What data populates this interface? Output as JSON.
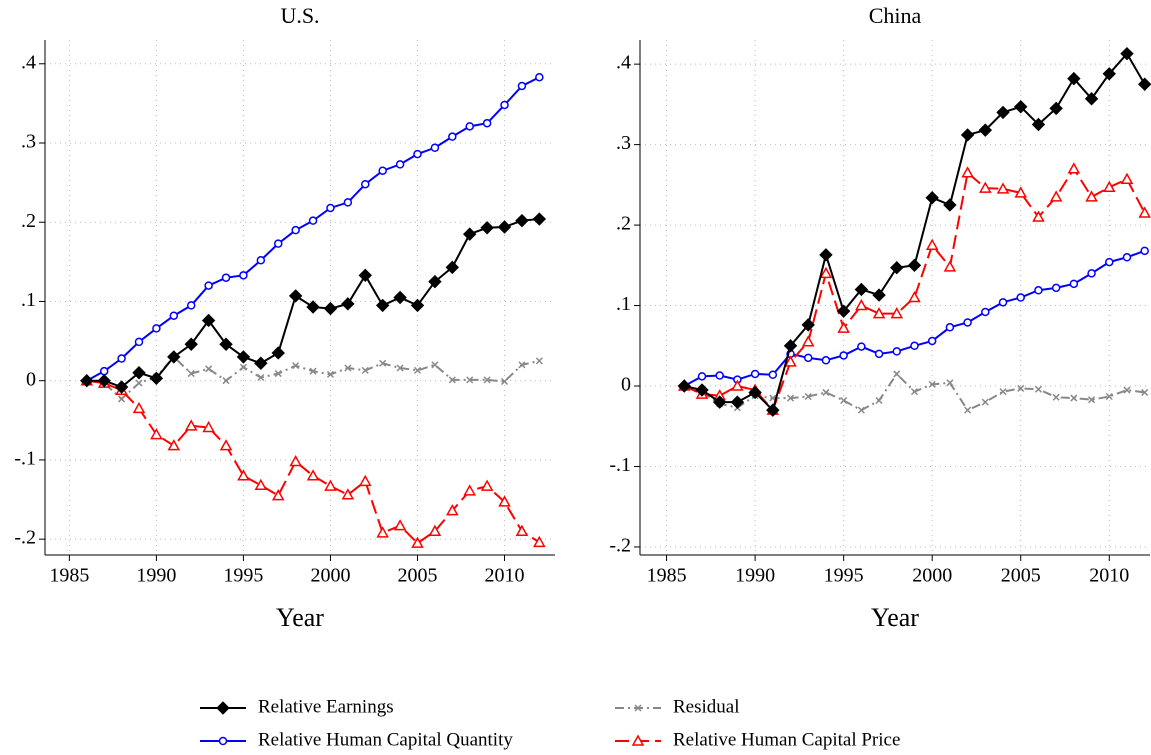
{
  "chart_data": [
    {
      "type": "line",
      "title": "U.S.",
      "x_label": "Year",
      "x": [
        1986,
        1987,
        1988,
        1989,
        1990,
        1991,
        1992,
        1993,
        1994,
        1995,
        1996,
        1997,
        1998,
        1999,
        2000,
        2001,
        2002,
        2003,
        2004,
        2005,
        2006,
        2007,
        2008,
        2009,
        2010,
        2011,
        2012
      ],
      "xlim": [
        1983.6,
        2012.9
      ],
      "xticks": [
        1985,
        1990,
        1995,
        2000,
        2005,
        2010
      ],
      "ylim": [
        -0.22,
        0.43
      ],
      "yticks": [
        {
          "value": -0.2,
          "label": "-.2"
        },
        {
          "value": -0.1,
          "label": "-.1"
        },
        0,
        {
          "value": 0.1,
          "label": ".1"
        },
        {
          "value": 0.2,
          "label": ".2"
        },
        {
          "value": 0.3,
          "label": ".3"
        },
        {
          "value": 0.4,
          "label": ".4"
        }
      ],
      "grid": true,
      "series": [
        {
          "name": "Relative Earnings",
          "color": "#000000",
          "marker": "diamond",
          "dash": "solid",
          "values": [
            0,
            0,
            -0.008,
            0.01,
            0.003,
            0.03,
            0.046,
            0.076,
            0.046,
            0.03,
            0.022,
            0.035,
            0.107,
            0.093,
            0.091,
            0.097,
            0.133,
            0.095,
            0.105,
            0.095,
            0.125,
            0.143,
            0.185,
            0.193,
            0.194,
            0.202,
            0.204
          ]
        },
        {
          "name": "Residual",
          "color": "#888888",
          "marker": "x",
          "dash": "dashdot",
          "values": [
            0,
            -0.003,
            -0.023,
            -0.003,
            0.005,
            0.03,
            0.009,
            0.015,
            0,
            0.017,
            0.004,
            0.009,
            0.019,
            0.012,
            0.008,
            0.016,
            0.013,
            0.022,
            0.016,
            0.013,
            0.02,
            0.001,
            0.001,
            0.001,
            -0.001,
            0.02,
            0.025
          ]
        },
        {
          "name": "Relative Human Capital Quantity",
          "color": "#0000ff",
          "marker": "circle",
          "dash": "solid",
          "values": [
            0,
            0.012,
            0.028,
            0.049,
            0.066,
            0.082,
            0.095,
            0.12,
            0.13,
            0.133,
            0.152,
            0.173,
            0.19,
            0.202,
            0.218,
            0.225,
            0.248,
            0.265,
            0.273,
            0.286,
            0.294,
            0.308,
            0.321,
            0.325,
            0.348,
            0.372,
            0.383
          ]
        },
        {
          "name": "Relative Human Capital Price",
          "color": "#ff0000",
          "marker": "triangle",
          "dash": "dash",
          "values": [
            0,
            -0.003,
            -0.012,
            -0.035,
            -0.068,
            -0.082,
            -0.057,
            -0.059,
            -0.082,
            -0.12,
            -0.132,
            -0.145,
            -0.102,
            -0.12,
            -0.133,
            -0.144,
            -0.127,
            -0.192,
            -0.183,
            -0.205,
            -0.19,
            -0.164,
            -0.139,
            -0.133,
            -0.153,
            -0.19,
            -0.204
          ]
        }
      ]
    },
    {
      "type": "line",
      "title": "China",
      "x_label": "Year",
      "x": [
        1986,
        1987,
        1988,
        1989,
        1990,
        1991,
        1992,
        1993,
        1994,
        1995,
        1996,
        1997,
        1998,
        1999,
        2000,
        2001,
        2002,
        2003,
        2004,
        2005,
        2006,
        2007,
        2008,
        2009,
        2010,
        2011,
        2012
      ],
      "xlim": [
        1983.5,
        2012.3
      ],
      "xticks": [
        1985,
        1990,
        1995,
        2000,
        2005,
        2010
      ],
      "ylim": [
        -0.21,
        0.43
      ],
      "yticks": [
        {
          "value": -0.2,
          "label": "-.2"
        },
        {
          "value": -0.1,
          "label": "-.1"
        },
        0,
        {
          "value": 0.1,
          "label": ".1"
        },
        {
          "value": 0.2,
          "label": ".2"
        },
        {
          "value": 0.3,
          "label": ".3"
        },
        {
          "value": 0.4,
          "label": ".4"
        }
      ],
      "grid": true,
      "series": [
        {
          "color": "#000000",
          "marker": "diamond",
          "dash": "solid",
          "values": [
            0,
            -0.005,
            -0.02,
            -0.02,
            -0.008,
            -0.03,
            0.05,
            0.076,
            0.163,
            0.093,
            0.12,
            0.113,
            0.147,
            0.15,
            0.234,
            0.225,
            0.312,
            0.318,
            0.34,
            0.347,
            0.325,
            0.345,
            0.382,
            0.357,
            0.388,
            0.413,
            0.375
          ]
        },
        {
          "color": "#888888",
          "marker": "x",
          "dash": "dashdot",
          "values": [
            0,
            -0.008,
            -0.022,
            -0.027,
            -0.012,
            -0.015,
            -0.015,
            -0.013,
            -0.008,
            -0.018,
            -0.03,
            -0.018,
            0.015,
            -0.007,
            0.002,
            0.004,
            -0.03,
            -0.02,
            -0.007,
            -0.003,
            -0.004,
            -0.014,
            -0.015,
            -0.017,
            -0.013,
            -0.005,
            -0.008
          ]
        },
        {
          "color": "#0000ff",
          "marker": "circle",
          "dash": "solid",
          "values": [
            0,
            0.012,
            0.013,
            0.008,
            0.015,
            0.014,
            0.04,
            0.035,
            0.032,
            0.038,
            0.049,
            0.04,
            0.043,
            0.05,
            0.056,
            0.073,
            0.079,
            0.092,
            0.104,
            0.11,
            0.119,
            0.122,
            0.127,
            0.14,
            0.154,
            0.16,
            0.168
          ]
        },
        {
          "color": "#ff0000",
          "marker": "triangle",
          "dash": "dash",
          "values": [
            0,
            -0.01,
            -0.012,
            0,
            -0.005,
            -0.03,
            0.03,
            0.055,
            0.14,
            0.072,
            0.1,
            0.09,
            0.09,
            0.11,
            0.175,
            0.148,
            0.265,
            0.246,
            0.245,
            0.24,
            0.21,
            0.235,
            0.27,
            0.235,
            0.247,
            0.257,
            0.215
          ]
        }
      ]
    }
  ]
}
